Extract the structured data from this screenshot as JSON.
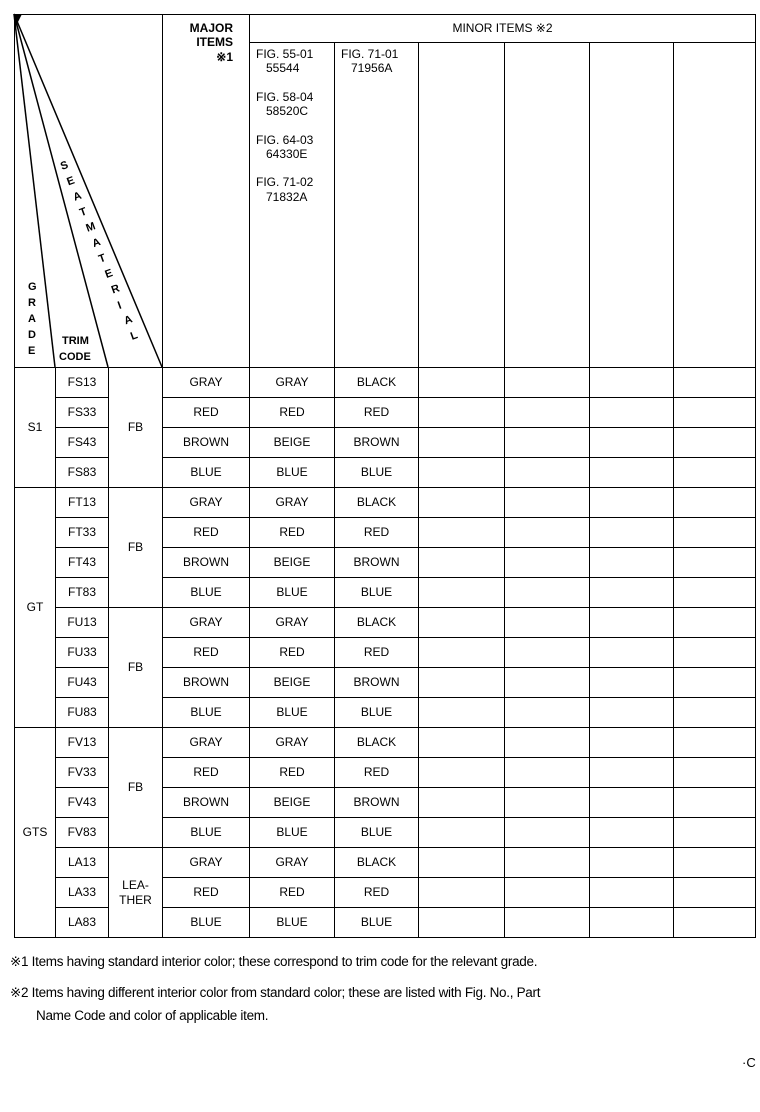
{
  "header": {
    "grade": "GRADE",
    "trim_code": [
      "TRIM",
      "CODE"
    ],
    "seat_material": "SEATMATERIAL",
    "major_items": [
      "MAJOR",
      "ITEMS",
      "※1"
    ],
    "minor_items": "MINOR ITEMS ※2",
    "minor_columns": [
      [
        [
          "FIG. 55-01",
          "55544"
        ],
        [
          "FIG. 58-04",
          "58520C"
        ],
        [
          "FIG. 64-03",
          "64330E"
        ],
        [
          "FIG. 71-02",
          "71832A"
        ]
      ],
      [
        [
          "FIG. 71-01",
          "71956A"
        ]
      ]
    ]
  },
  "rows": [
    {
      "grade": "S1",
      "trim": "FS13",
      "seat": "FB",
      "major": "GRAY",
      "m1": "GRAY",
      "m2": "BLACK"
    },
    {
      "trim": "FS33",
      "major": "RED",
      "m1": "RED",
      "m2": "RED"
    },
    {
      "trim": "FS43",
      "major": "BROWN",
      "m1": "BEIGE",
      "m2": "BROWN"
    },
    {
      "trim": "FS83",
      "major": "BLUE",
      "m1": "BLUE",
      "m2": "BLUE"
    },
    {
      "grade": "GT",
      "trim": "FT13",
      "seat": "FB",
      "major": "GRAY",
      "m1": "GRAY",
      "m2": "BLACK"
    },
    {
      "trim": "FT33",
      "major": "RED",
      "m1": "RED",
      "m2": "RED"
    },
    {
      "trim": "FT43",
      "major": "BROWN",
      "m1": "BEIGE",
      "m2": "BROWN"
    },
    {
      "trim": "FT83",
      "major": "BLUE",
      "m1": "BLUE",
      "m2": "BLUE"
    },
    {
      "trim": "FU13",
      "seat": "FB",
      "major": "GRAY",
      "m1": "GRAY",
      "m2": "BLACK"
    },
    {
      "trim": "FU33",
      "major": "RED",
      "m1": "RED",
      "m2": "RED"
    },
    {
      "trim": "FU43",
      "major": "BROWN",
      "m1": "BEIGE",
      "m2": "BROWN"
    },
    {
      "trim": "FU83",
      "major": "BLUE",
      "m1": "BLUE",
      "m2": "BLUE"
    },
    {
      "grade": "GTS",
      "trim": "FV13",
      "seat": "FB",
      "major": "GRAY",
      "m1": "GRAY",
      "m2": "BLACK"
    },
    {
      "trim": "FV33",
      "major": "RED",
      "m1": "RED",
      "m2": "RED"
    },
    {
      "trim": "FV43",
      "major": "BROWN",
      "m1": "BEIGE",
      "m2": "BROWN"
    },
    {
      "trim": "FV83",
      "major": "BLUE",
      "m1": "BLUE",
      "m2": "BLUE"
    },
    {
      "trim": "LA13",
      "seat": "LEA-\nTHER",
      "major": "GRAY",
      "m1": "GRAY",
      "m2": "BLACK"
    },
    {
      "trim": "LA33",
      "major": "RED",
      "m1": "RED",
      "m2": "RED"
    },
    {
      "trim": "LA83",
      "major": "BLUE",
      "m1": "BLUE",
      "m2": "BLUE"
    }
  ],
  "rowspans": {
    "grade": [
      4,
      8,
      7
    ],
    "seat": [
      4,
      4,
      4,
      4,
      3
    ]
  },
  "notes": [
    "※1 Items having standard interior color; these correspond to trim code for the relevant grade.",
    "※2 Items having different interior color from standard color; these are listed with Fig. No., Part",
    "Name Code and color of applicable item."
  ],
  "page_mark": "·C"
}
